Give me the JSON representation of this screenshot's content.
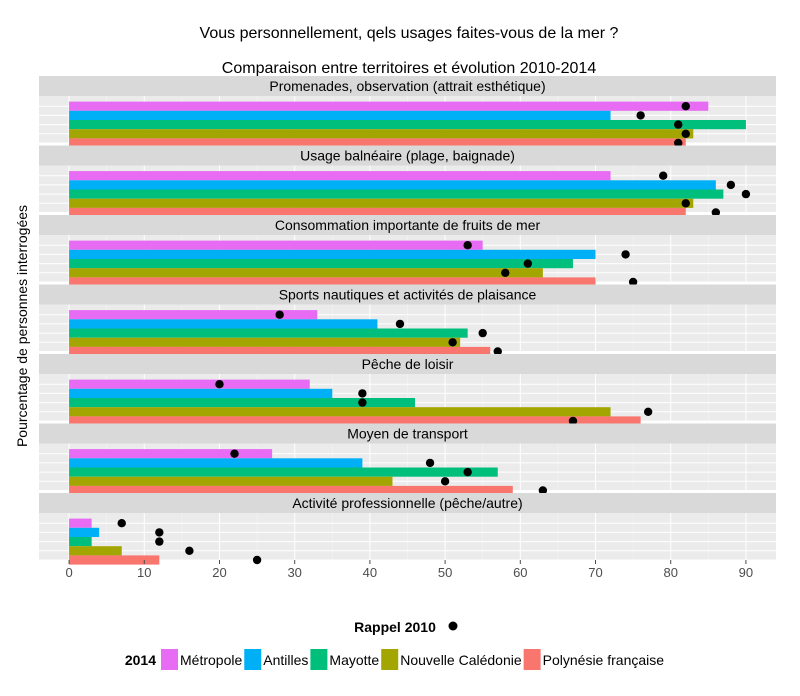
{
  "chart_data": {
    "type": "bar",
    "orientation": "horizontal",
    "title": "Vous personnellement, qels usages faites-vous de la mer ?",
    "subtitle": "Comparaison entre territoires et évolution 2010-2014",
    "ylabel": "Pourcentage de personnes interrogées",
    "xlim": [
      -4,
      94
    ],
    "xticks": [
      0,
      10,
      20,
      30,
      40,
      50,
      60,
      70,
      80,
      90
    ],
    "grid": true,
    "legend_position": "bottom",
    "legend_point_title": "Rappel 2010",
    "legend_bar_title": "2014",
    "territories": [
      "Métropole",
      "Antilles",
      "Mayotte",
      "Nouvelle Calédonie",
      "Polynésie française"
    ],
    "colors": [
      "#e76bf3",
      "#00b0f6",
      "#00bf7d",
      "#a3a500",
      "#f8766d"
    ],
    "point_color": "#000000",
    "facets": [
      {
        "name": "Promenades, observation (attrait esthétique)",
        "values_2014": [
          85,
          72,
          90,
          83,
          82
        ],
        "values_2010": [
          82,
          76,
          81,
          82,
          81
        ]
      },
      {
        "name": "Usage balnéaire (plage, baignade)",
        "values_2014": [
          72,
          86,
          87,
          83,
          82
        ],
        "values_2010": [
          79,
          88,
          90,
          82,
          86
        ]
      },
      {
        "name": "Consommation importante de fruits de mer",
        "values_2014": [
          55,
          70,
          67,
          63,
          70
        ],
        "values_2010": [
          53,
          74,
          61,
          58,
          75
        ]
      },
      {
        "name": "Sports nautiques et activités de plaisance",
        "values_2014": [
          33,
          41,
          53,
          52,
          56
        ],
        "values_2010": [
          28,
          44,
          55,
          51,
          57
        ]
      },
      {
        "name": "Pêche de loisir",
        "values_2014": [
          32,
          35,
          46,
          72,
          76
        ],
        "values_2010": [
          20,
          39,
          39,
          77,
          67
        ]
      },
      {
        "name": "Moyen de transport",
        "values_2014": [
          27,
          39,
          57,
          43,
          59
        ],
        "values_2010": [
          22,
          48,
          53,
          50,
          63
        ]
      },
      {
        "name": "Activité professionnelle (pêche/autre)",
        "values_2014": [
          3,
          4,
          3,
          7,
          12
        ],
        "values_2010": [
          7,
          12,
          12,
          16,
          25
        ]
      }
    ]
  }
}
